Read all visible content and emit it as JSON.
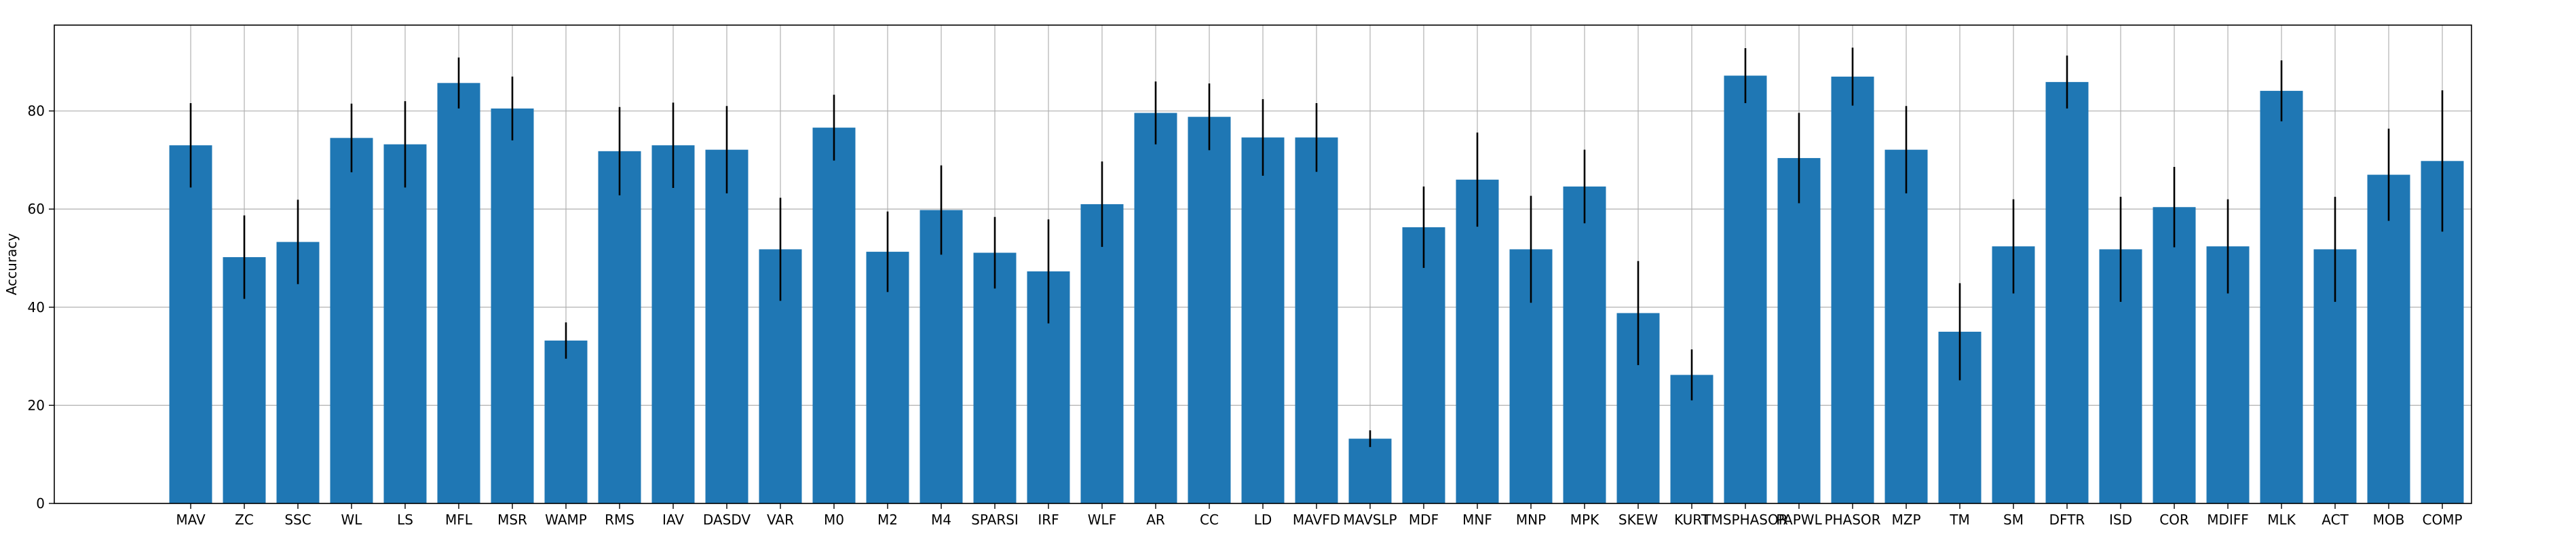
{
  "chart_data": {
    "type": "bar",
    "xlabel": "",
    "ylabel": "Accuracy",
    "ylim": [
      0,
      97.5
    ],
    "yticks": [
      0,
      20,
      40,
      60,
      80
    ],
    "grid": true,
    "bar_color": "#1f77b4",
    "error_color": "#000000",
    "categories": [
      "MAV",
      "ZC",
      "SSC",
      "WL",
      "LS",
      "MFL",
      "MSR",
      "WAMP",
      "RMS",
      "IAV",
      "DASDV",
      "VAR",
      "M0",
      "M2",
      "M4",
      "SPARSI",
      "IRF",
      "WLF",
      "AR",
      "CC",
      "LD",
      "MAVFD",
      "MAVSLP",
      "MDF",
      "MNF",
      "MNP",
      "MPK",
      "SKEW",
      "KURT",
      "TMSPHASOR",
      "PAPWL",
      "PHASOR",
      "MZP",
      "TM",
      "SM",
      "DFTR",
      "ISD",
      "COR",
      "MDIFF",
      "MLK",
      "ACT",
      "MOB",
      "COMP"
    ],
    "values": [
      73.0,
      50.2,
      53.3,
      74.5,
      73.2,
      85.7,
      80.5,
      33.2,
      71.8,
      73.0,
      72.1,
      51.8,
      76.6,
      51.3,
      59.8,
      51.1,
      47.3,
      61.0,
      79.6,
      78.8,
      74.6,
      74.6,
      13.2,
      56.3,
      66.0,
      51.8,
      64.6,
      38.8,
      26.2,
      87.2,
      70.4,
      87.0,
      72.1,
      35.0,
      52.4,
      85.9,
      51.8,
      60.4,
      52.4,
      84.1,
      51.8,
      67.0,
      69.8
    ],
    "errors": [
      8.6,
      8.5,
      8.6,
      7.0,
      8.8,
      5.2,
      6.5,
      3.7,
      9.0,
      8.7,
      8.9,
      10.5,
      6.7,
      8.2,
      9.1,
      7.3,
      10.6,
      8.7,
      6.4,
      6.8,
      7.8,
      7.0,
      1.7,
      8.3,
      9.6,
      10.9,
      7.5,
      10.6,
      5.2,
      5.6,
      9.2,
      5.9,
      8.9,
      9.9,
      9.6,
      5.4,
      10.7,
      8.2,
      9.6,
      6.2,
      10.7,
      9.4,
      14.4
    ]
  }
}
